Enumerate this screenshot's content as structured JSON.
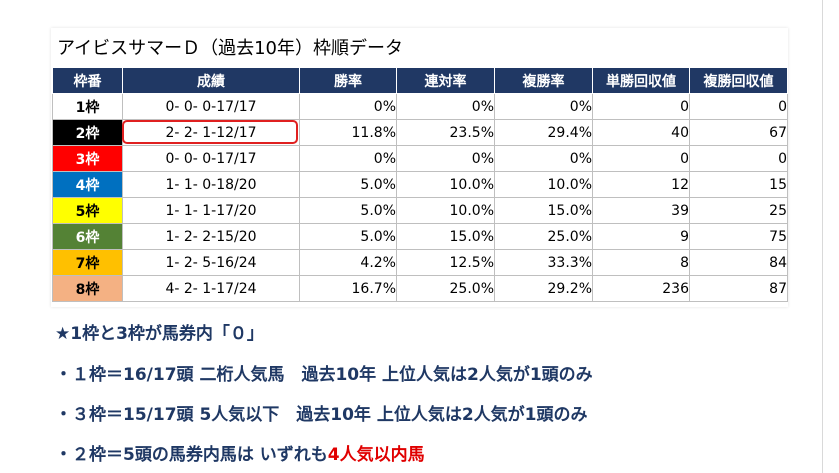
{
  "title": "アイビスサマーＤ（過去10年）枠順データ",
  "headers": [
    "枠番",
    "成績",
    "勝率",
    "連対率",
    "複勝率",
    "単勝回収値",
    "複勝回収値"
  ],
  "rows": [
    {
      "gate": "1枠",
      "record": "0- 0- 0-17/17",
      "win": "0%",
      "quinella": "0%",
      "place": "0%",
      "win_return": "0",
      "place_return": "0",
      "bg": "#ffffff",
      "fg": "#000000"
    },
    {
      "gate": "2枠",
      "record": "2- 2- 1-12/17",
      "win": "11.8%",
      "quinella": "23.5%",
      "place": "29.4%",
      "win_return": "40",
      "place_return": "67",
      "bg": "#000000",
      "fg": "#ffffff"
    },
    {
      "gate": "3枠",
      "record": "0- 0- 0-17/17",
      "win": "0%",
      "quinella": "0%",
      "place": "0%",
      "win_return": "0",
      "place_return": "0",
      "bg": "#ff0000",
      "fg": "#ffffff"
    },
    {
      "gate": "4枠",
      "record": "1- 1- 0-18/20",
      "win": "5.0%",
      "quinella": "10.0%",
      "place": "10.0%",
      "win_return": "12",
      "place_return": "15",
      "bg": "#0070c0",
      "fg": "#ffffff"
    },
    {
      "gate": "5枠",
      "record": "1- 1- 1-17/20",
      "win": "5.0%",
      "quinella": "10.0%",
      "place": "15.0%",
      "win_return": "39",
      "place_return": "25",
      "bg": "#ffff00",
      "fg": "#000000"
    },
    {
      "gate": "6枠",
      "record": "1- 2- 2-15/20",
      "win": "5.0%",
      "quinella": "15.0%",
      "place": "25.0%",
      "win_return": "9",
      "place_return": "75",
      "bg": "#548235",
      "fg": "#ffffff"
    },
    {
      "gate": "7枠",
      "record": "1- 2- 5-16/24",
      "win": "4.2%",
      "quinella": "12.5%",
      "place": "33.3%",
      "win_return": "8",
      "place_return": "84",
      "bg": "#ffc000",
      "fg": "#000000"
    },
    {
      "gate": "8枠",
      "record": "4- 2- 1-17/24",
      "win": "16.7%",
      "quinella": "25.0%",
      "place": "29.2%",
      "win_return": "236",
      "place_return": "87",
      "bg": "#f4b183",
      "fg": "#000000"
    }
  ],
  "notes": {
    "line1": "★1枠と3枠が馬券内「０」",
    "line2": "・１枠＝16/17頭 二桁人気馬　過去10年 上位人気は2人気が1頭のみ",
    "line3": "・３枠＝15/17頭 5人気以下　過去10年 上位人気は2人気が1頭のみ",
    "line4_prefix": "・２枠＝5頭の馬券内馬は いずれも",
    "line4_emph": "4人気以内馬"
  },
  "colors": {
    "header_bg": "#203864",
    "note_text": "#1f3864",
    "highlight": "#e02020",
    "emphasis": "#e00000"
  }
}
